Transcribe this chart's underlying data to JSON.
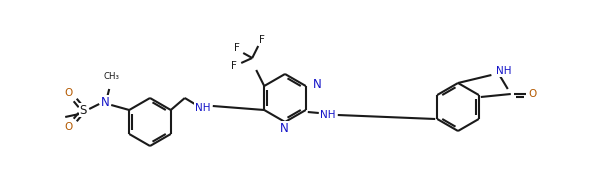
{
  "bg": "#ffffff",
  "lc": "#1a1a1a",
  "nc": "#1414c8",
  "oc": "#b35900",
  "lw": 1.5,
  "fs": 7.5,
  "figsize": [
    5.97,
    1.86
  ],
  "dpi": 100,
  "xlim": [
    0,
    597
  ],
  "ylim": [
    186,
    0
  ]
}
